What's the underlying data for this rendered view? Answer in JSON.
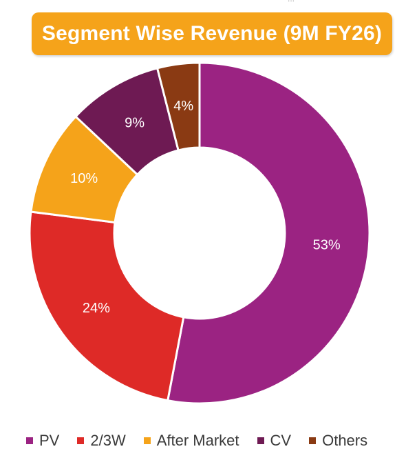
{
  "header_partial_text": "...",
  "chart_data": {
    "type": "pie",
    "title": "Segment Wise Revenue (9M FY26)",
    "donut": true,
    "categories": [
      "PV",
      "2/3W",
      "After Market",
      "CV",
      "Others"
    ],
    "values": [
      53,
      24,
      10,
      9,
      4
    ],
    "labels": [
      "53%",
      "24%",
      "10%",
      "9%",
      "4%"
    ],
    "colors": [
      "#9b2382",
      "#de2a27",
      "#f5a31a",
      "#6e1a53",
      "#8a3a13"
    ],
    "legend_position": "bottom"
  }
}
